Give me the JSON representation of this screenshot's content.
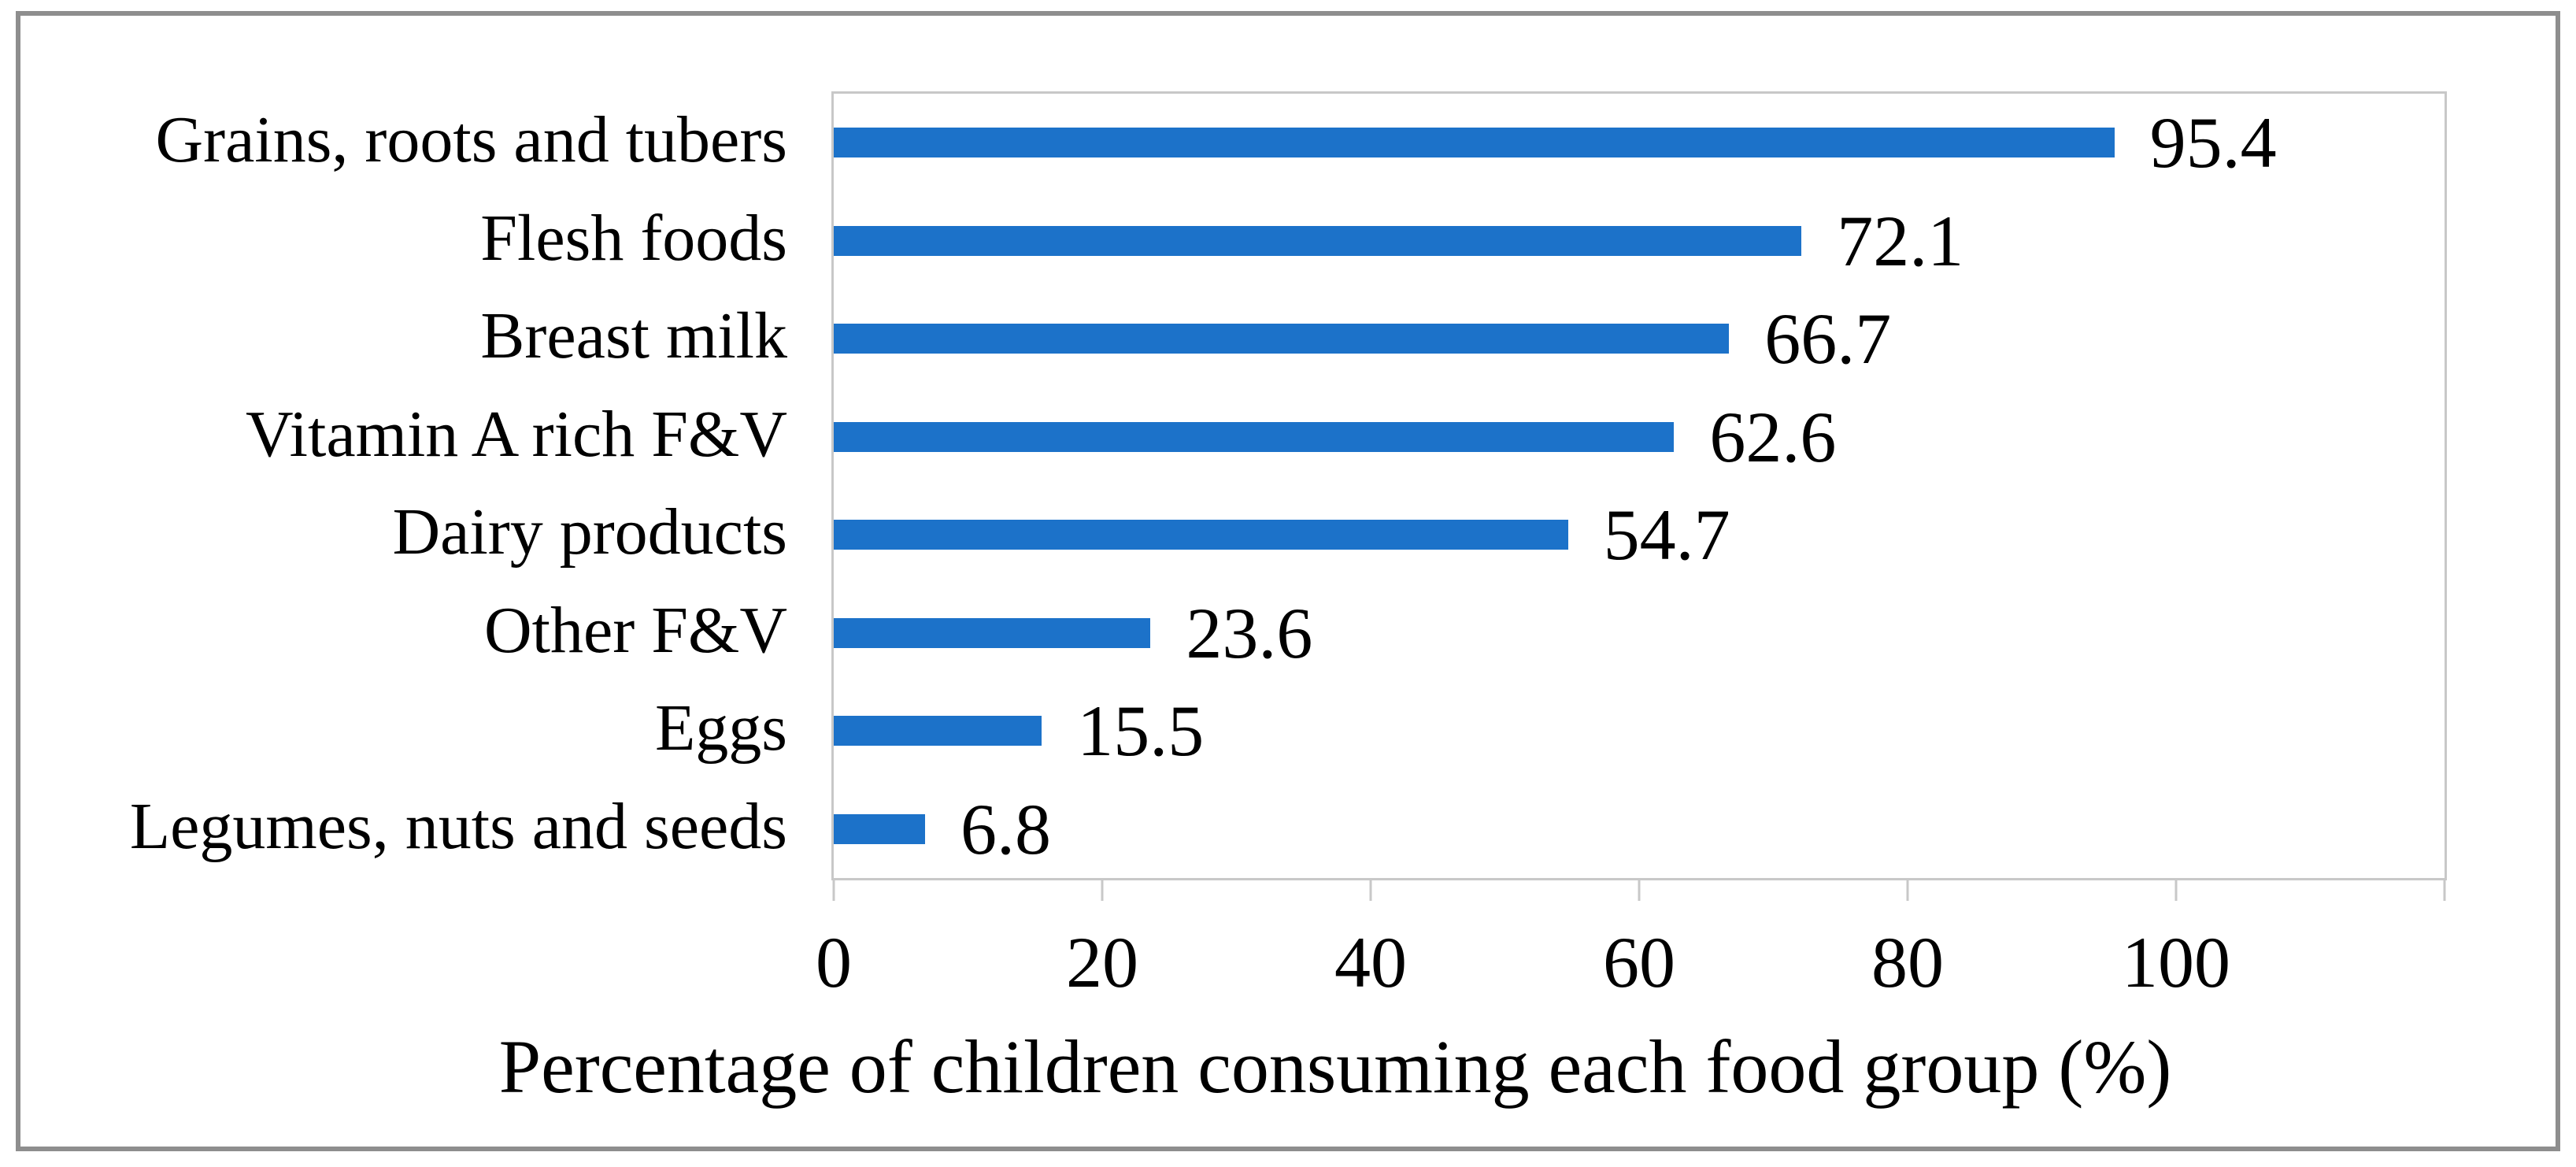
{
  "chart_data": {
    "type": "bar",
    "orientation": "horizontal",
    "title": "",
    "xlabel": "Percentage of children consuming each food group (%)",
    "ylabel": "",
    "categories": [
      "Grains, roots and tubers",
      "Flesh foods",
      "Breast milk",
      "Vitamin A rich F&V",
      "Dairy products",
      "Other F&V",
      "Eggs",
      "Legumes, nuts and seeds"
    ],
    "values": [
      95.4,
      72.1,
      66.7,
      62.6,
      54.7,
      23.6,
      15.5,
      6.8
    ],
    "data_labels": [
      "95.4",
      "72.1",
      "66.7",
      "62.6",
      "54.7",
      "23.6",
      "15.5",
      "6.8"
    ],
    "xlim": [
      0,
      120
    ],
    "x_tick_values": [
      0,
      20,
      40,
      60,
      80,
      100
    ],
    "x_tick_labels": [
      "0",
      "20",
      "40",
      "60",
      "80",
      "100"
    ],
    "x_tick_marks": [
      0,
      20,
      40,
      60,
      80,
      100,
      120
    ],
    "grid": false,
    "legend": false,
    "data_labels_position": "outside-end",
    "colors": {
      "bar": "#1c72c9",
      "axis_line": "#c8c8c8",
      "text": "#000000",
      "frame_border": "#8e8e8e",
      "background": "#ffffff"
    }
  }
}
